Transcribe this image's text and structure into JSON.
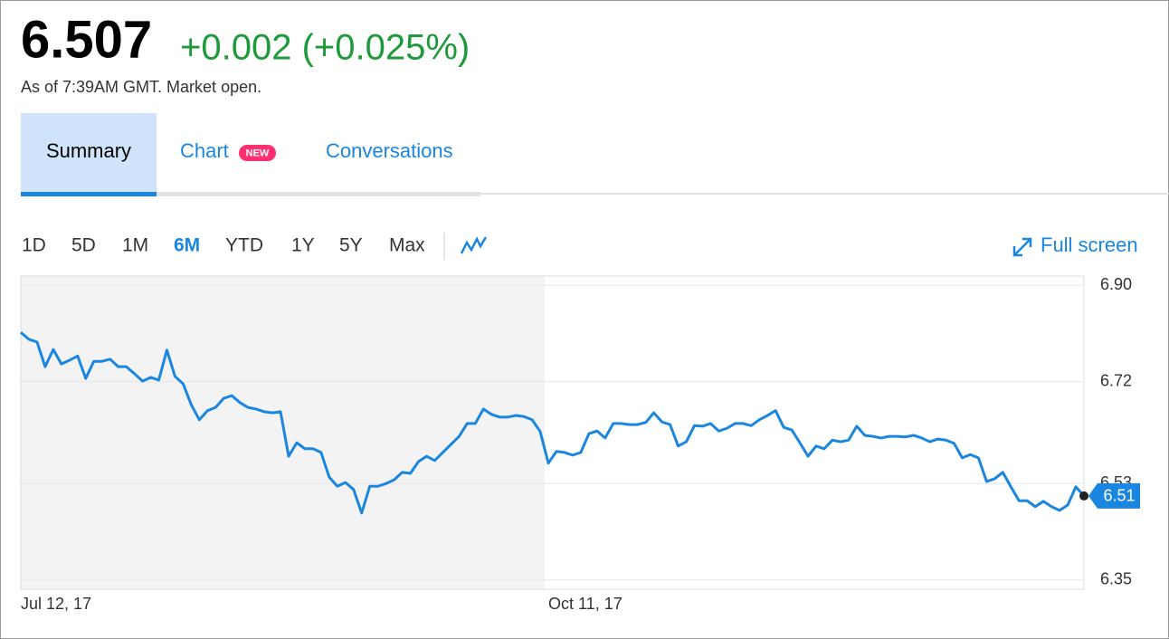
{
  "header": {
    "price": "6.507",
    "change": "+0.002 (+0.025%)",
    "status": "As of 7:39AM GMT. Market open."
  },
  "tabs": {
    "summary": "Summary",
    "chart": "Chart",
    "badge": "NEW",
    "conversations": "Conversations"
  },
  "ranges": [
    "1D",
    "5D",
    "1M",
    "6M",
    "YTD",
    "1Y",
    "5Y",
    "Max"
  ],
  "fullscreen": "Full screen",
  "chart_data": {
    "type": "line",
    "color": "#1a86e0",
    "grid": true,
    "ylim": [
      6.333,
      6.917
    ],
    "yticks": [
      {
        "value": 6.9,
        "label": "6.90"
      },
      {
        "value": 6.72,
        "label": "6.72"
      },
      {
        "value": 6.53,
        "label": "6.53"
      },
      {
        "value": 6.35,
        "label": "6.35"
      }
    ],
    "current": {
      "value": 6.507,
      "label": "6.51"
    },
    "categories": [
      "Jul 12, 17",
      null,
      null,
      null,
      null,
      null,
      null,
      null,
      null,
      null,
      null,
      null,
      null,
      null,
      null,
      null,
      null,
      null,
      null,
      null,
      null,
      null,
      null,
      null,
      null,
      null,
      null,
      null,
      null,
      null,
      null,
      null,
      null,
      null,
      null,
      null,
      null,
      null,
      null,
      null,
      null,
      null,
      null,
      null,
      null,
      null,
      null,
      null,
      null,
      null,
      null,
      null,
      null,
      null,
      null,
      null,
      null,
      null,
      null,
      null,
      null,
      null,
      null,
      null,
      null,
      "Oct 11, 17",
      null,
      null,
      null,
      null,
      null,
      null,
      null,
      null,
      null,
      null,
      null,
      null,
      null,
      null,
      null,
      null,
      null,
      null,
      null,
      null,
      null,
      null,
      null,
      null,
      null,
      null,
      null,
      null,
      null,
      null,
      null,
      null,
      null,
      null,
      null,
      null,
      null,
      null,
      null,
      null,
      null,
      null,
      null,
      null,
      null,
      null,
      null,
      null,
      null,
      null,
      null,
      null,
      null,
      null,
      null,
      null,
      null,
      null,
      null,
      null,
      null,
      null,
      null,
      null,
      null,
      null
    ],
    "values": [
      6.812,
      6.799,
      6.794,
      6.748,
      6.78,
      6.753,
      6.76,
      6.768,
      6.726,
      6.758,
      6.758,
      6.762,
      6.748,
      6.748,
      6.735,
      6.721,
      6.728,
      6.723,
      6.779,
      6.73,
      6.716,
      6.677,
      6.649,
      6.666,
      6.672,
      6.689,
      6.694,
      6.681,
      6.672,
      6.669,
      6.664,
      6.662,
      6.664,
      6.581,
      6.606,
      6.595,
      6.595,
      6.588,
      6.542,
      6.525,
      6.532,
      6.519,
      6.475,
      6.525,
      6.525,
      6.53,
      6.537,
      6.551,
      6.549,
      6.571,
      6.581,
      6.573,
      6.588,
      6.603,
      6.618,
      6.642,
      6.642,
      6.669,
      6.659,
      6.654,
      6.654,
      6.657,
      6.655,
      6.649,
      6.627,
      6.568,
      6.59,
      6.588,
      6.583,
      6.588,
      6.623,
      6.628,
      6.615,
      6.642,
      6.642,
      6.64,
      6.64,
      6.644,
      6.662,
      6.645,
      6.64,
      6.6,
      6.608,
      6.638,
      6.637,
      6.642,
      6.628,
      6.633,
      6.642,
      6.642,
      6.638,
      6.649,
      6.657,
      6.666,
      6.635,
      6.63,
      6.606,
      6.581,
      6.6,
      6.595,
      6.611,
      6.608,
      6.611,
      6.637,
      6.62,
      6.618,
      6.615,
      6.618,
      6.618,
      6.617,
      6.62,
      6.615,
      6.608,
      6.613,
      6.611,
      6.605,
      6.578,
      6.584,
      6.578,
      6.534,
      6.539,
      6.551,
      6.524,
      6.498,
      6.498,
      6.487,
      6.497,
      6.487,
      6.48,
      6.49,
      6.524,
      6.507
    ]
  }
}
